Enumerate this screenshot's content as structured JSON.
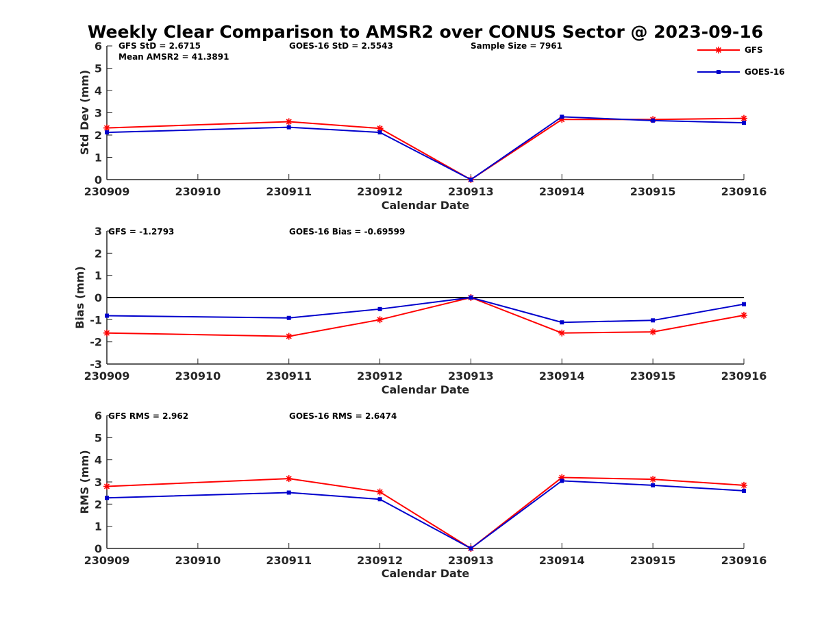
{
  "title": "Weekly Clear Comparison to AMSR2 over CONUS Sector @ 2023-09-16",
  "colors": {
    "gfs": "#ff0000",
    "goes": "#0000cc",
    "axis": "#262626",
    "zero_line": "#000000"
  },
  "legend": {
    "location": "top-right",
    "entries": [
      {
        "name": "GFS",
        "color": "#ff0000",
        "marker": "asterisk"
      },
      {
        "name": "GOES-16",
        "color": "#0000cc",
        "marker": "square"
      }
    ]
  },
  "chart_data": [
    {
      "type": "line",
      "ylabel": "Std Dev (mm)",
      "xlabel": "Calendar Date",
      "ylim": [
        0,
        6
      ],
      "yticks": [
        0,
        1,
        2,
        3,
        4,
        5,
        6
      ],
      "x_ticks": [
        "230909",
        "230910",
        "230911",
        "230912",
        "230913",
        "230914",
        "230915",
        "230916"
      ],
      "zero_line": false,
      "annotations": [
        "GFS StD = 2.6715",
        "GOES-16 StD = 2.5543",
        "Sample Size = 7961",
        "Mean AMSR2 = 41.3891"
      ],
      "series": [
        {
          "name": "GFS",
          "x": [
            "230909",
            "230911",
            "230912",
            "230913",
            "230914",
            "230915",
            "230916"
          ],
          "values": [
            2.32,
            2.6,
            2.3,
            0.0,
            2.7,
            2.7,
            2.75
          ]
        },
        {
          "name": "GOES-16",
          "x": [
            "230909",
            "230911",
            "230912",
            "230913",
            "230914",
            "230915",
            "230916"
          ],
          "values": [
            2.12,
            2.35,
            2.12,
            0.0,
            2.82,
            2.65,
            2.55
          ]
        }
      ]
    },
    {
      "type": "line",
      "ylabel": "Bias (mm)",
      "xlabel": "Calendar Date",
      "ylim": [
        -3,
        3
      ],
      "yticks": [
        -3,
        -2,
        -1,
        0,
        1,
        2,
        3
      ],
      "x_ticks": [
        "230909",
        "230910",
        "230911",
        "230912",
        "230913",
        "230914",
        "230915",
        "230916"
      ],
      "zero_line": true,
      "annotations": [
        "GFS = -1.2793",
        "GOES-16 Bias  = -0.69599"
      ],
      "series": [
        {
          "name": "GFS",
          "x": [
            "230909",
            "230911",
            "230912",
            "230913",
            "230914",
            "230915",
            "230916"
          ],
          "values": [
            -1.6,
            -1.75,
            -1.0,
            0.0,
            -1.6,
            -1.55,
            -0.8
          ]
        },
        {
          "name": "GOES-16",
          "x": [
            "230909",
            "230911",
            "230912",
            "230913",
            "230914",
            "230915",
            "230916"
          ],
          "values": [
            -0.82,
            -0.92,
            -0.52,
            0.0,
            -1.12,
            -1.03,
            -0.3
          ]
        }
      ]
    },
    {
      "type": "line",
      "ylabel": "RMS (mm)",
      "xlabel": "Calendar Date",
      "ylim": [
        0,
        6
      ],
      "yticks": [
        0,
        1,
        2,
        3,
        4,
        5,
        6
      ],
      "x_ticks": [
        "230909",
        "230910",
        "230911",
        "230912",
        "230913",
        "230914",
        "230915",
        "230916"
      ],
      "zero_line": false,
      "annotations": [
        "GFS RMS = 2.962",
        "GOES-16 RMS = 2.6474"
      ],
      "series": [
        {
          "name": "GFS",
          "x": [
            "230909",
            "230911",
            "230912",
            "230913",
            "230914",
            "230915",
            "230916"
          ],
          "values": [
            2.8,
            3.15,
            2.55,
            0.0,
            3.2,
            3.12,
            2.85
          ]
        },
        {
          "name": "GOES-16",
          "x": [
            "230909",
            "230911",
            "230912",
            "230913",
            "230914",
            "230915",
            "230916"
          ],
          "values": [
            2.28,
            2.52,
            2.22,
            0.0,
            3.05,
            2.85,
            2.6
          ]
        }
      ]
    }
  ]
}
